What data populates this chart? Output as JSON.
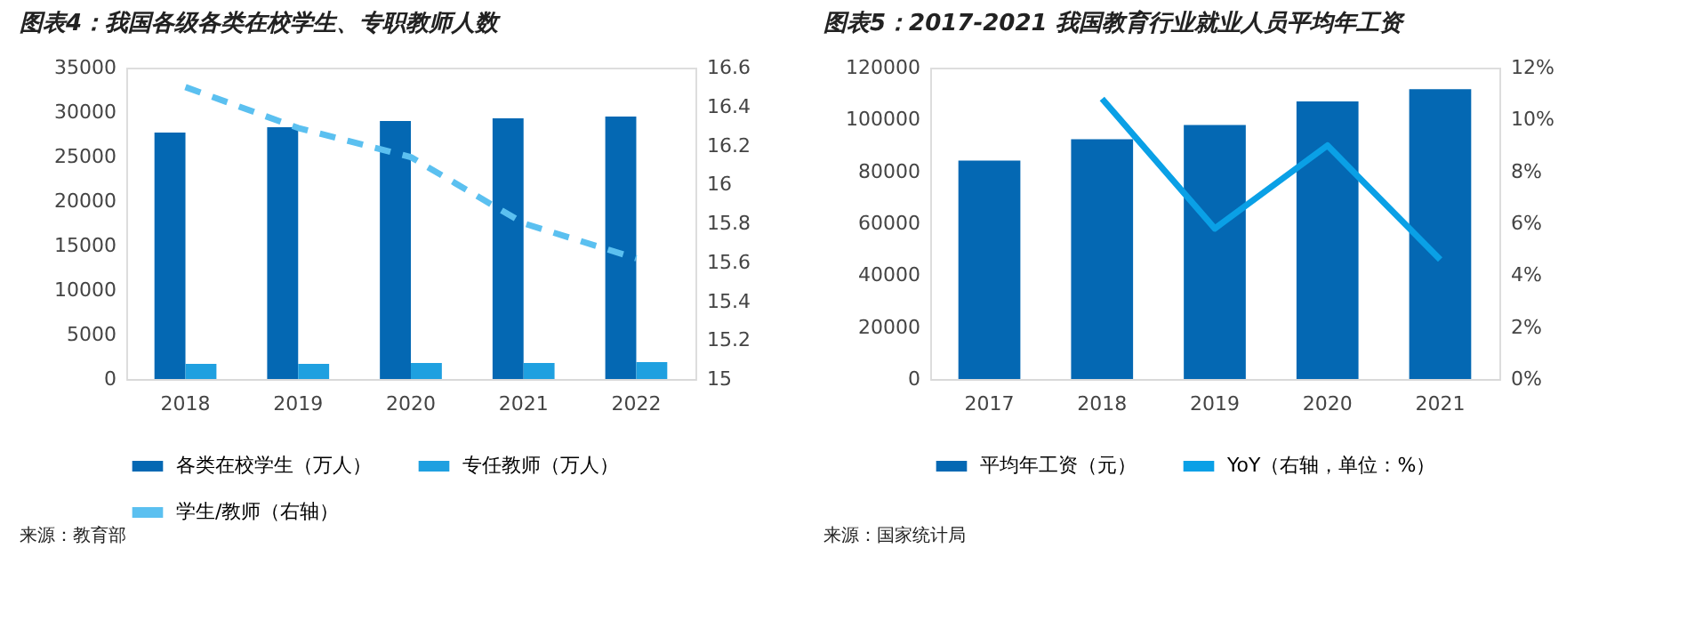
{
  "chart_data": [
    {
      "type": "bar",
      "title": "图表4：我国各级各类在校学生、专职教师人数",
      "categories": [
        "2018",
        "2019",
        "2020",
        "2021",
        "2022"
      ],
      "series": [
        {
          "name": "各类在校学生（万人）",
          "color": "#0468b3",
          "values": [
            27700,
            28300,
            29000,
            29300,
            29500
          ]
        },
        {
          "name": "专任教师（万人）",
          "color": "#1fa0e0",
          "values": [
            1700,
            1700,
            1800,
            1800,
            1900
          ]
        },
        {
          "name": "学生/教师（右轴）",
          "type": "line",
          "axis": "y2",
          "line_style": "dashed",
          "color": "#5bc0f0",
          "values": [
            16.5,
            16.29,
            16.14,
            15.8,
            15.62
          ]
        }
      ],
      "ylim": [
        0,
        35000
      ],
      "yticks": [
        0,
        5000,
        10000,
        15000,
        20000,
        25000,
        30000,
        35000
      ],
      "y2lim": [
        15,
        16.6
      ],
      "y2ticks": [
        15,
        15.2,
        15.4,
        15.6,
        15.8,
        16,
        16.2,
        16.4,
        16.6
      ],
      "legend": "bottom",
      "annotations": [
        "来源：教育部"
      ]
    },
    {
      "type": "bar",
      "title": "图表5：2017-2021 我国教育行业就业人员平均年工资",
      "categories": [
        "2017",
        "2018",
        "2019",
        "2020",
        "2021"
      ],
      "series": [
        {
          "name": "平均年工资（元）",
          "color": "#0468b3",
          "values": [
            84200,
            92400,
            97900,
            107000,
            111700
          ]
        },
        {
          "name": "YoY（右轴，单位：%）",
          "type": "line",
          "axis": "y2",
          "line_style": "solid",
          "color": "#0aa0e6",
          "values": [
            null,
            10.8,
            5.8,
            9.0,
            4.6
          ]
        }
      ],
      "ylim": [
        0,
        120000
      ],
      "yticks": [
        0,
        20000,
        40000,
        60000,
        80000,
        100000,
        120000
      ],
      "y2lim": [
        0,
        12
      ],
      "y2ticks": [
        {
          "value": 0,
          "label": "0%"
        },
        {
          "value": 2,
          "label": "2%"
        },
        {
          "value": 4,
          "label": "4%"
        },
        {
          "value": 6,
          "label": "6%"
        },
        {
          "value": 8,
          "label": "8%"
        },
        {
          "value": 10,
          "label": "10%"
        },
        {
          "value": 12,
          "label": "12%"
        }
      ],
      "legend": "bottom",
      "annotations": [
        "来源：国家统计局"
      ]
    }
  ]
}
